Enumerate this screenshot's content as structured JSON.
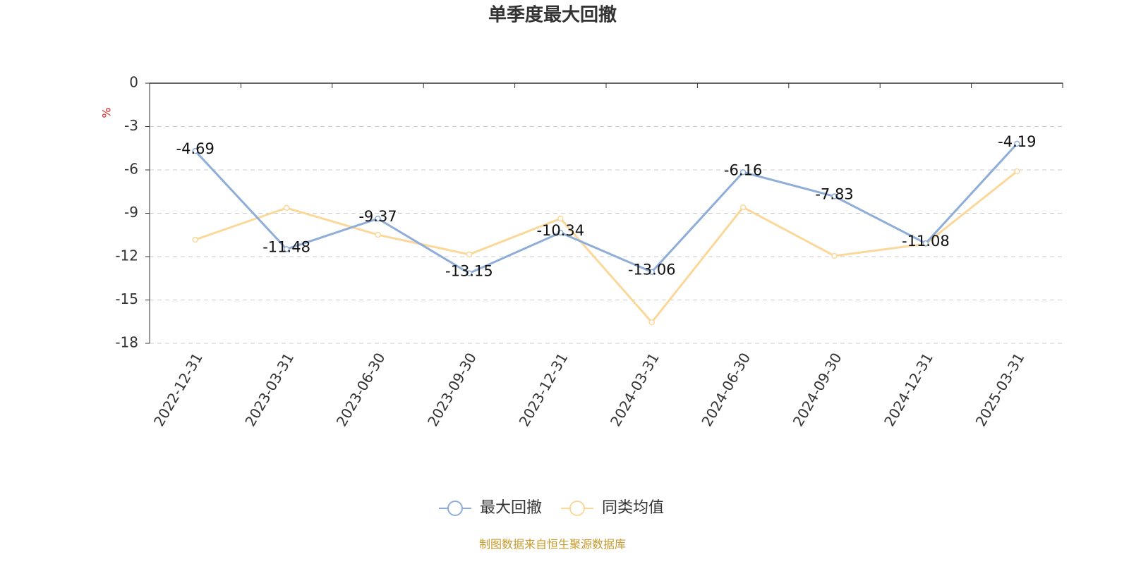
{
  "chart_data": {
    "type": "line",
    "title": "单季度最大回撤",
    "y_unit": "%",
    "categories": [
      "2022-12-31",
      "2023-03-31",
      "2023-06-30",
      "2023-09-30",
      "2023-12-31",
      "2024-03-31",
      "2024-06-30",
      "2024-09-30",
      "2024-12-31",
      "2025-03-31"
    ],
    "series": [
      {
        "name": "最大回撤",
        "color": "#8eadd9",
        "values": [
          -4.69,
          -11.48,
          -9.37,
          -13.15,
          -10.34,
          -13.06,
          -6.16,
          -7.83,
          -11.08,
          -4.19
        ]
      },
      {
        "name": "同类均值",
        "color": "#fbd89a",
        "values": [
          -10.83,
          -8.63,
          -10.49,
          -11.85,
          -9.37,
          -16.54,
          -8.59,
          -11.95,
          -11.12,
          -6.1
        ]
      }
    ],
    "ylim": [
      -18,
      0
    ],
    "yticks": [
      0,
      -3,
      -6,
      -9,
      -12,
      -15,
      -18
    ],
    "grid": true,
    "source": "制图数据来自恒生聚源数据库"
  }
}
